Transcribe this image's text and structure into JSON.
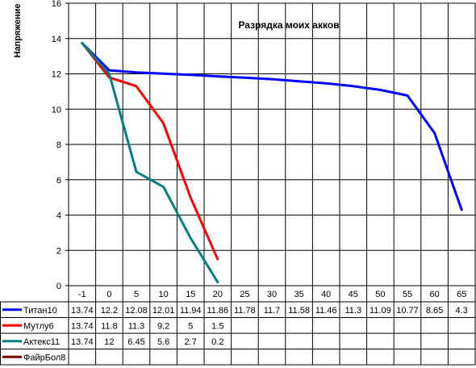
{
  "chart_data": {
    "type": "line",
    "title": "Разрядка моих акков",
    "ylabel": "Напряжение",
    "xlabel": "",
    "ylim": [
      0,
      16
    ],
    "y_ticks": [
      0,
      2,
      4,
      6,
      8,
      10,
      12,
      14,
      16
    ],
    "categories": [
      "-1",
      "0",
      "5",
      "10",
      "15",
      "20",
      "25",
      "30",
      "35",
      "40",
      "45",
      "50",
      "55",
      "60",
      "65"
    ],
    "grid": true,
    "legend": "data-table",
    "series": [
      {
        "name": "Титан10",
        "color": "#0000ff",
        "values": [
          13.74,
          12.2,
          12.08,
          12.01,
          11.94,
          11.86,
          11.78,
          11.7,
          11.58,
          11.46,
          11.3,
          11.09,
          10.77,
          8.65,
          4.3
        ]
      },
      {
        "name": "Мутлу6",
        "color": "#ff0000",
        "values": [
          13.74,
          11.8,
          11.3,
          9.2,
          5,
          1.5,
          null,
          null,
          null,
          null,
          null,
          null,
          null,
          null,
          null
        ]
      },
      {
        "name": "Актекс11",
        "color": "#008080",
        "values": [
          13.74,
          12,
          6.45,
          5.6,
          2.7,
          0.2,
          null,
          null,
          null,
          null,
          null,
          null,
          null,
          null,
          null
        ]
      },
      {
        "name": "ФайрБол8",
        "color": "#800000",
        "values": [
          null,
          null,
          null,
          null,
          null,
          null,
          null,
          null,
          null,
          null,
          null,
          null,
          null,
          null,
          null
        ]
      }
    ]
  }
}
